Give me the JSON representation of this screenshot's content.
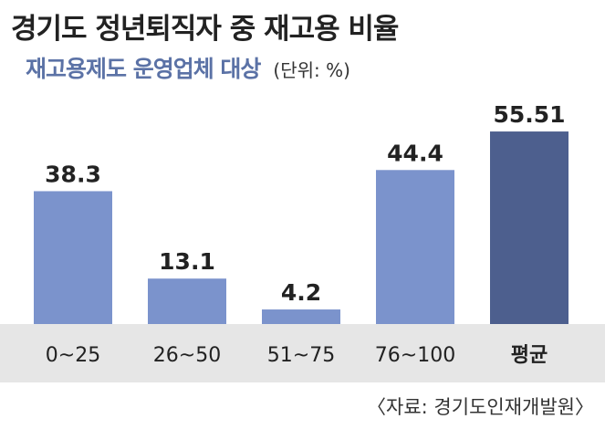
{
  "title": "경기도 정년퇴직자 중 재고용 비율",
  "subtitle": "재고용제도 운영업체 대상",
  "unit": "(단위: %)",
  "source": "〈자료: 경기도인재개발원〉",
  "colors": {
    "bar": "#7b93cc",
    "bar_highlight": "#4d5f8e",
    "band": "#e6e6e6",
    "label": "#222222"
  },
  "chart_data": {
    "type": "bar",
    "categories": [
      "0~25",
      "26~50",
      "51~75",
      "76~100",
      "평균"
    ],
    "values": [
      38.3,
      13.1,
      4.2,
      44.4,
      55.51
    ],
    "value_labels": [
      "38.3",
      "13.1",
      "4.2",
      "44.4",
      "55.51"
    ],
    "highlight": "평균",
    "ylim": [
      0,
      60
    ],
    "grid": false,
    "legend": "none"
  }
}
